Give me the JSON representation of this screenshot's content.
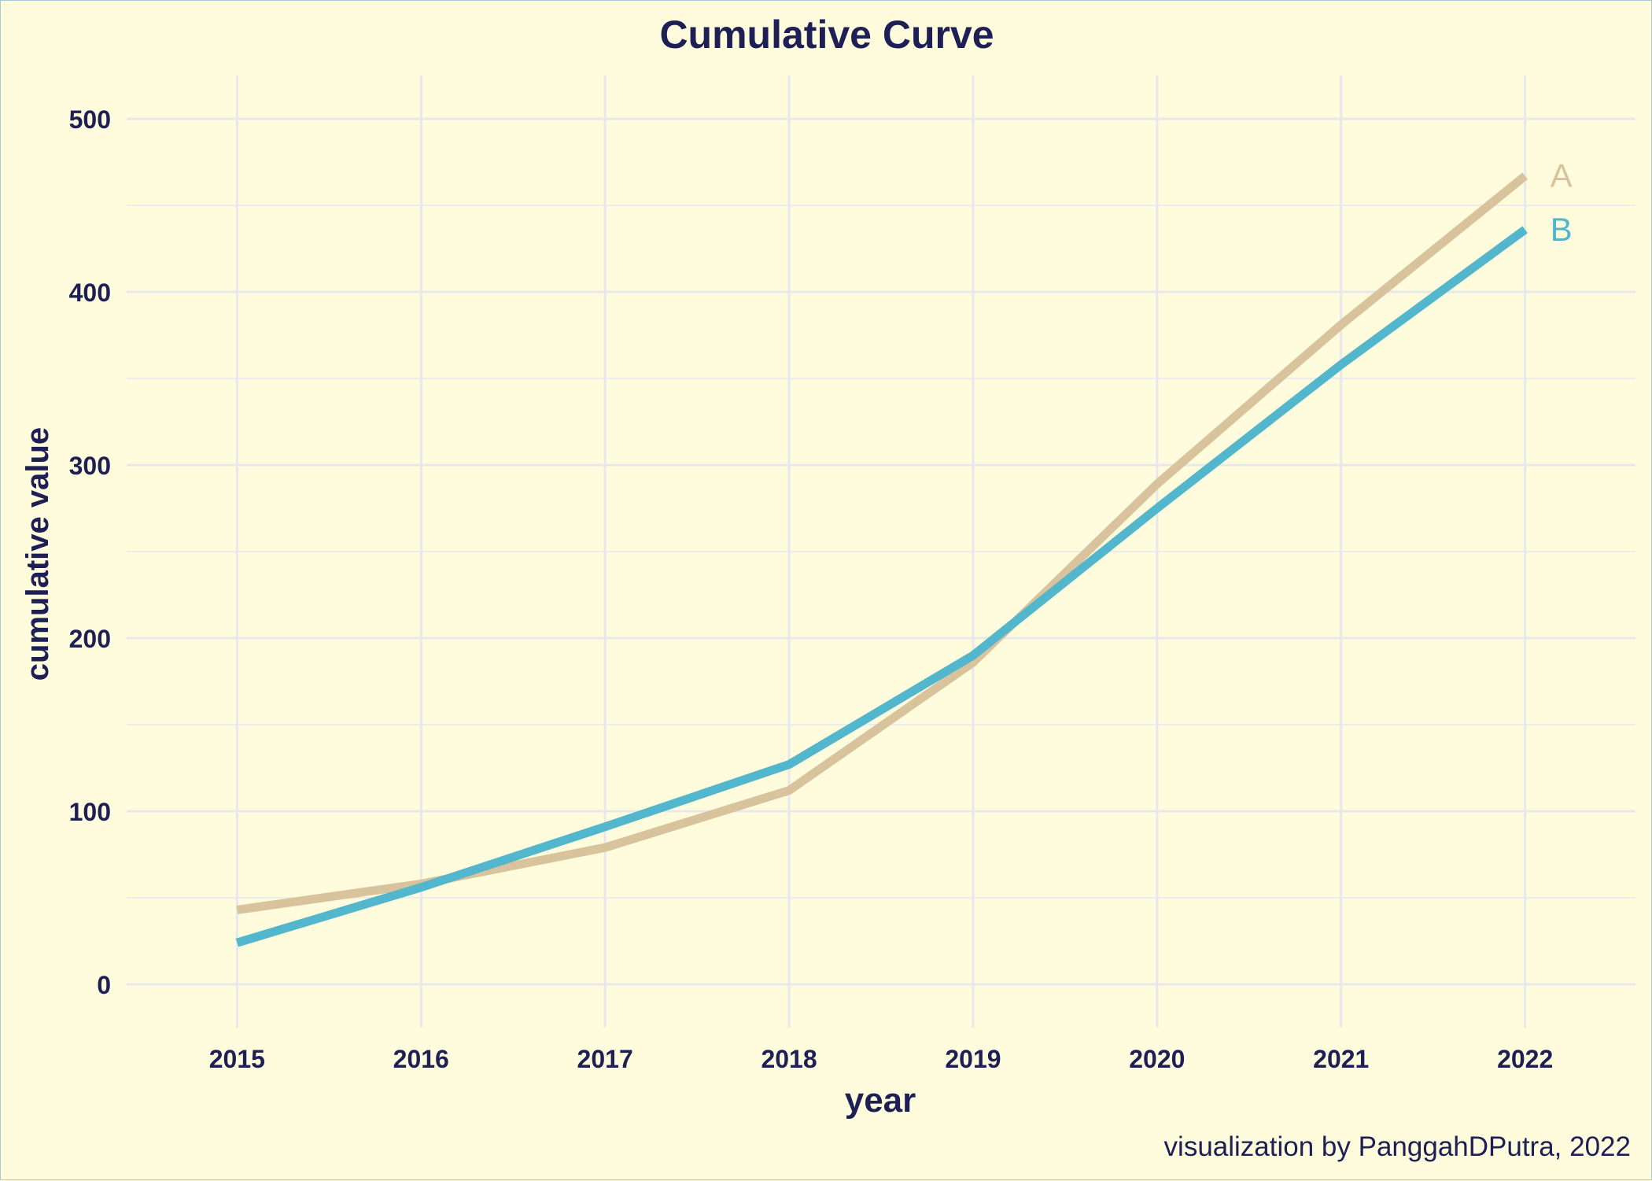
{
  "chart_data": {
    "type": "line",
    "title": "Cumulative Curve",
    "xlabel": "year",
    "ylabel": "cumulative value",
    "caption": "visualization by PanggahDPutra, 2022",
    "x": [
      2015,
      2016,
      2017,
      2018,
      2019,
      2020,
      2021,
      2022
    ],
    "xlim": [
      2014.4,
      2022.6
    ],
    "ylim": [
      -25,
      525
    ],
    "yticks": [
      0,
      100,
      200,
      300,
      400,
      500
    ],
    "grid": true,
    "legend": "direct labels at line ends",
    "series": [
      {
        "name": "A",
        "color": "#d8c39c",
        "values": [
          43,
          58,
          79,
          112,
          186,
          289,
          381,
          467
        ]
      },
      {
        "name": "B",
        "color": "#52b6cc",
        "values": [
          24,
          56,
          91,
          127,
          190,
          275,
          358,
          436
        ]
      }
    ],
    "colors": {
      "background": "#fefcdc",
      "grid": "#e6e8ee",
      "text": "#1d1f55"
    }
  }
}
